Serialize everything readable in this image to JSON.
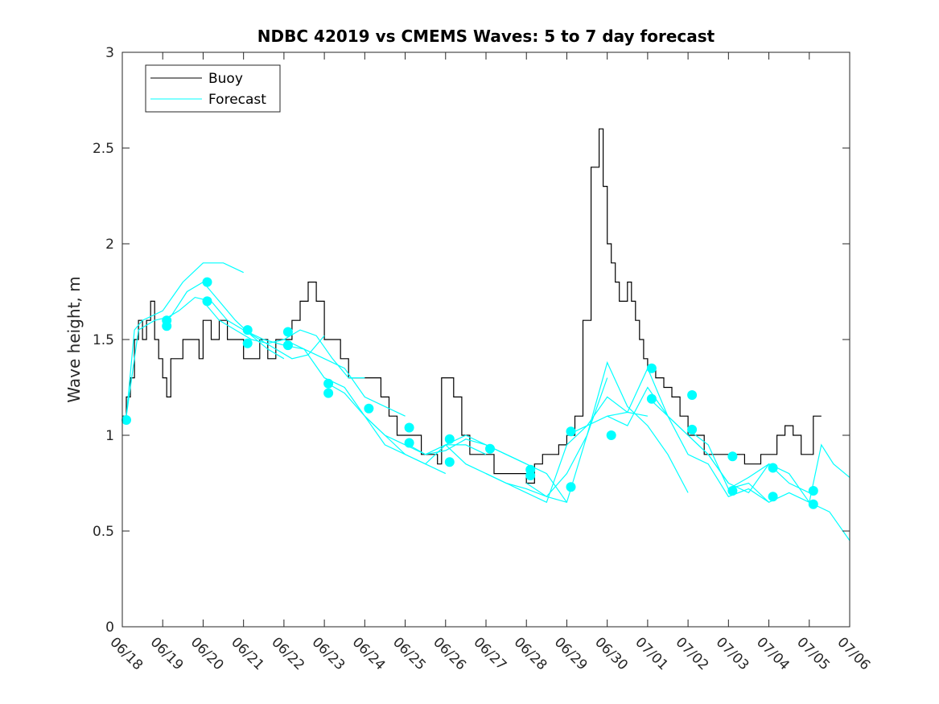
{
  "chart_data": {
    "type": "line",
    "title": "NDBC 42019 vs CMEMS Waves: 5 to 7 day forecast",
    "xlabel": "",
    "ylabel": "Wave height, m",
    "x_tick_labels": [
      "06/18",
      "06/19",
      "06/20",
      "06/21",
      "06/22",
      "06/23",
      "06/24",
      "06/25",
      "06/26",
      "06/27",
      "06/28",
      "06/29",
      "06/30",
      "07/01",
      "07/02",
      "07/03",
      "07/04",
      "07/05",
      "07/06"
    ],
    "xlim": [
      0,
      18
    ],
    "ylim": [
      0,
      3
    ],
    "y_ticks": [
      0,
      0.5,
      1,
      1.5,
      2,
      2.5,
      3
    ],
    "y_tick_labels": [
      "0",
      "0.5",
      "1",
      "1.5",
      "2",
      "2.5",
      "3"
    ],
    "grid": false,
    "legend_position": "top-left",
    "colors": {
      "buoy": "#000000",
      "forecast": "#00ffff"
    },
    "series": [
      {
        "name": "Buoy",
        "style": "line",
        "x": [
          0,
          0.1,
          0.2,
          0.3,
          0.4,
          0.5,
          0.6,
          0.7,
          0.8,
          0.9,
          1.0,
          1.1,
          1.2,
          1.3,
          1.5,
          1.7,
          1.9,
          2.0,
          2.2,
          2.4,
          2.6,
          2.8,
          3.0,
          3.2,
          3.4,
          3.6,
          3.8,
          4.0,
          4.2,
          4.4,
          4.6,
          4.8,
          5.0,
          5.2,
          5.4,
          5.6,
          5.8,
          6.0,
          6.2,
          6.4,
          6.6,
          6.8,
          7.0,
          7.2,
          7.4,
          7.6,
          7.8,
          7.9,
          8.0,
          8.2,
          8.4,
          8.6,
          8.8,
          9.0,
          9.2,
          9.4,
          9.6,
          9.8,
          10.0,
          10.2,
          10.4,
          10.6,
          10.8,
          11.0,
          11.2,
          11.4,
          11.6,
          11.8,
          11.9,
          12.0,
          12.1,
          12.2,
          12.3,
          12.4,
          12.5,
          12.6,
          12.7,
          12.8,
          12.9,
          13.0,
          13.2,
          13.4,
          13.6,
          13.8,
          14.0,
          14.2,
          14.4,
          14.6,
          14.8,
          15.0,
          15.2,
          15.4,
          15.6,
          15.8,
          16.0,
          16.2,
          16.4,
          16.6,
          16.8,
          17.0,
          17.1,
          17.2,
          17.3
        ],
        "y": [
          1.1,
          1.2,
          1.3,
          1.5,
          1.6,
          1.5,
          1.6,
          1.7,
          1.5,
          1.4,
          1.3,
          1.2,
          1.4,
          1.4,
          1.5,
          1.5,
          1.4,
          1.6,
          1.5,
          1.6,
          1.5,
          1.5,
          1.4,
          1.4,
          1.5,
          1.4,
          1.5,
          1.5,
          1.6,
          1.7,
          1.8,
          1.7,
          1.5,
          1.5,
          1.4,
          1.3,
          1.3,
          1.3,
          1.3,
          1.2,
          1.1,
          1.0,
          1.0,
          1.0,
          0.9,
          0.9,
          0.85,
          1.3,
          1.3,
          1.2,
          1.0,
          0.9,
          0.9,
          0.9,
          0.8,
          0.8,
          0.8,
          0.8,
          0.75,
          0.85,
          0.9,
          0.9,
          0.95,
          1.0,
          1.1,
          1.6,
          2.4,
          2.6,
          2.3,
          2.0,
          1.9,
          1.8,
          1.7,
          1.7,
          1.8,
          1.7,
          1.6,
          1.5,
          1.4,
          1.35,
          1.3,
          1.25,
          1.2,
          1.1,
          1.0,
          1.0,
          0.9,
          0.9,
          0.9,
          0.9,
          0.9,
          0.85,
          0.85,
          0.9,
          0.9,
          1.0,
          1.05,
          1.0,
          0.9,
          0.9,
          1.1,
          1.1,
          1.1
        ]
      },
      {
        "name": "Forecast",
        "style": "line",
        "x": [
          0.1,
          0.3,
          0.5,
          1.0,
          1.5,
          2.0,
          2.5,
          3.0
        ],
        "y": [
          1.1,
          1.55,
          1.6,
          1.65,
          1.8,
          1.9,
          1.9,
          1.85
        ]
      },
      {
        "style": "line",
        "x": [
          0.1,
          0.4,
          0.8,
          1.2,
          1.6,
          2.0,
          2.4,
          2.8,
          3.2,
          3.6,
          4.0
        ],
        "y": [
          1.1,
          1.55,
          1.6,
          1.62,
          1.75,
          1.8,
          1.7,
          1.6,
          1.52,
          1.45,
          1.4
        ]
      },
      {
        "style": "line",
        "x": [
          1.0,
          1.4,
          1.8,
          2.2,
          2.6,
          3.0,
          3.4,
          3.8,
          4.2,
          4.6,
          5.0
        ],
        "y": [
          1.6,
          1.65,
          1.72,
          1.7,
          1.6,
          1.55,
          1.5,
          1.45,
          1.4,
          1.42,
          1.52
        ]
      },
      {
        "style": "line",
        "x": [
          2.0,
          2.4,
          2.8,
          3.2,
          3.6,
          4.0,
          4.4,
          4.8,
          5.2,
          5.6,
          6.0
        ],
        "y": [
          1.7,
          1.6,
          1.55,
          1.5,
          1.48,
          1.5,
          1.55,
          1.52,
          1.4,
          1.3,
          1.3
        ]
      },
      {
        "style": "line",
        "x": [
          3.0,
          3.5,
          4.0,
          4.5,
          5.0,
          5.5,
          6.0,
          6.5,
          7.0
        ],
        "y": [
          1.55,
          1.5,
          1.47,
          1.45,
          1.4,
          1.35,
          1.2,
          1.15,
          1.1
        ]
      },
      {
        "style": "line",
        "x": [
          4.0,
          4.5,
          5.0,
          5.5,
          6.0,
          6.5,
          7.0,
          7.5,
          8.0
        ],
        "y": [
          1.5,
          1.45,
          1.3,
          1.25,
          1.1,
          1.0,
          0.9,
          0.85,
          0.8
        ]
      },
      {
        "style": "line",
        "x": [
          5.0,
          5.5,
          6.0,
          6.5,
          7.0,
          7.5,
          8.0,
          8.5,
          9.0
        ],
        "y": [
          1.28,
          1.22,
          1.1,
          1.0,
          0.95,
          0.9,
          0.95,
          0.95,
          0.9
        ]
      },
      {
        "style": "line",
        "x": [
          6.0,
          6.5,
          7.0,
          7.5,
          8.0,
          8.5,
          9.0,
          9.5,
          10.0
        ],
        "y": [
          1.1,
          0.95,
          0.9,
          0.85,
          0.95,
          1.0,
          0.95,
          0.9,
          0.85
        ]
      },
      {
        "style": "line",
        "x": [
          7.0,
          7.5,
          8.0,
          8.5,
          9.0,
          9.5,
          10.0,
          10.5,
          11.0
        ],
        "y": [
          0.96,
          0.9,
          0.92,
          0.98,
          0.95,
          0.9,
          0.85,
          0.8,
          0.65
        ]
      },
      {
        "style": "line",
        "x": [
          8.0,
          8.5,
          9.0,
          9.5,
          10.0,
          10.5,
          11.0,
          11.5,
          12.0
        ],
        "y": [
          0.95,
          0.85,
          0.8,
          0.75,
          0.72,
          0.68,
          0.8,
          1.0,
          1.3
        ]
      },
      {
        "style": "line",
        "x": [
          9.0,
          9.5,
          10.0,
          10.5,
          11.0,
          11.5,
          12.0,
          12.5,
          13.0
        ],
        "y": [
          0.8,
          0.75,
          0.7,
          0.65,
          0.95,
          1.05,
          1.1,
          1.12,
          1.1
        ]
      },
      {
        "style": "line",
        "x": [
          10.0,
          10.5,
          11.0,
          11.5,
          12.0,
          12.5,
          13.0,
          13.5,
          14.0
        ],
        "y": [
          0.75,
          0.68,
          0.65,
          1.0,
          1.38,
          1.15,
          1.05,
          0.9,
          0.7
        ]
      },
      {
        "style": "line",
        "x": [
          11.0,
          11.5,
          12.0,
          12.5,
          13.0,
          13.5,
          14.0,
          14.5,
          15.0
        ],
        "y": [
          1.0,
          1.05,
          1.2,
          1.12,
          1.35,
          1.1,
          1.0,
          0.9,
          0.75
        ]
      },
      {
        "style": "line",
        "x": [
          12.0,
          12.5,
          13.0,
          13.5,
          14.0,
          14.5,
          15.0,
          15.5,
          16.0
        ],
        "y": [
          1.1,
          1.05,
          1.25,
          1.1,
          0.9,
          0.85,
          0.68,
          0.72,
          0.65
        ]
      },
      {
        "style": "line",
        "x": [
          13.0,
          13.5,
          14.0,
          14.5,
          15.0,
          15.5,
          16.0,
          16.5,
          17.0
        ],
        "y": [
          1.2,
          1.1,
          1.0,
          0.9,
          0.75,
          0.7,
          0.85,
          0.75,
          0.7
        ]
      },
      {
        "style": "line",
        "x": [
          14.0,
          14.5,
          15.0,
          15.5,
          16.0,
          16.5,
          17.0,
          17.5,
          18.0
        ],
        "y": [
          1.03,
          0.95,
          0.72,
          0.75,
          0.65,
          0.7,
          0.65,
          0.6,
          0.45
        ]
      },
      {
        "style": "line",
        "x": [
          15.0,
          15.5,
          16.0,
          16.5,
          17.0,
          17.3,
          17.6,
          18.0
        ],
        "y": [
          0.72,
          0.78,
          0.85,
          0.8,
          0.65,
          0.95,
          0.85,
          0.78
        ]
      },
      {
        "style": "markers",
        "x": [
          0.1,
          1.1,
          1.1,
          2.1,
          2.1,
          3.1,
          3.1,
          4.1,
          4.1,
          5.1,
          5.1,
          6.1,
          7.1,
          7.1,
          8.1,
          8.1,
          9.1,
          10.1,
          10.1,
          11.1,
          11.1,
          12.1,
          13.1,
          13.1,
          14.1,
          14.1,
          15.1,
          15.1,
          16.1,
          16.1,
          17.1,
          17.1
        ],
        "y": [
          1.08,
          1.6,
          1.57,
          1.8,
          1.7,
          1.55,
          1.48,
          1.54,
          1.47,
          1.27,
          1.22,
          1.14,
          1.04,
          0.96,
          0.86,
          0.98,
          0.93,
          0.79,
          0.82,
          0.73,
          1.02,
          1.0,
          1.19,
          1.35,
          1.21,
          1.03,
          0.89,
          0.71,
          0.68,
          0.83,
          0.64,
          0.71
        ]
      }
    ]
  },
  "legend": {
    "items": [
      {
        "label": "Buoy"
      },
      {
        "label": "Forecast"
      }
    ]
  }
}
